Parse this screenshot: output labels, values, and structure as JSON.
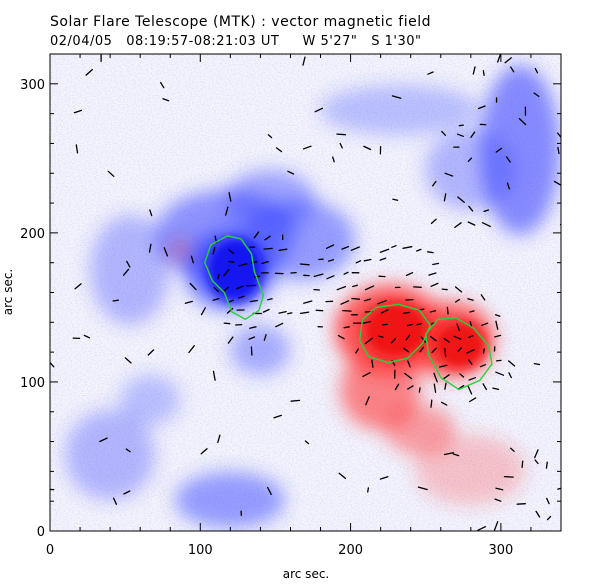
{
  "header": {
    "title": "Solar Flare Telescope (MTK) : vector magnetic field",
    "subtitle": "02/04/05   08:19:57-08:21:03 UT     W 5'27\"   S 1'30\""
  },
  "chart_data": {
    "type": "heatmap",
    "title": "Solar Flare Telescope (MTK) : vector magnetic field",
    "subtitle": "02/04/05   08:19:57-08:21:03 UT     W 5'27\"   S 1'30\"",
    "xlabel": "arc sec.",
    "ylabel": "arc sec.",
    "xlim": [
      0,
      340
    ],
    "ylim": [
      0,
      320
    ],
    "xticks": [
      0,
      100,
      200,
      300
    ],
    "yticks": [
      0,
      100,
      200,
      300
    ],
    "colors": {
      "negative_polarity": "#2a37ff",
      "positive_polarity": "#ff2a2a",
      "contour": "#28d23c",
      "vector": "#000000"
    },
    "contours": [
      {
        "polarity": "negative",
        "points": [
          [
            103,
            180
          ],
          [
            107,
            192
          ],
          [
            118,
            198
          ],
          [
            127,
            196
          ],
          [
            134,
            186
          ],
          [
            136,
            174
          ],
          [
            142,
            158
          ],
          [
            139,
            148
          ],
          [
            130,
            142
          ],
          [
            121,
            147
          ],
          [
            116,
            160
          ],
          [
            108,
            168
          ]
        ]
      },
      {
        "polarity": "positive",
        "points": [
          [
            208,
            142
          ],
          [
            217,
            150
          ],
          [
            232,
            152
          ],
          [
            246,
            148
          ],
          [
            253,
            138
          ],
          [
            248,
            126
          ],
          [
            238,
            116
          ],
          [
            225,
            113
          ],
          [
            212,
            117
          ],
          [
            206,
            128
          ]
        ]
      },
      {
        "polarity": "positive",
        "points": [
          [
            250,
            132
          ],
          [
            258,
            142
          ],
          [
            270,
            143
          ],
          [
            282,
            136
          ],
          [
            292,
            124
          ],
          [
            294,
            112
          ],
          [
            286,
            101
          ],
          [
            272,
            95
          ],
          [
            260,
            103
          ],
          [
            252,
            118
          ]
        ]
      }
    ]
  }
}
